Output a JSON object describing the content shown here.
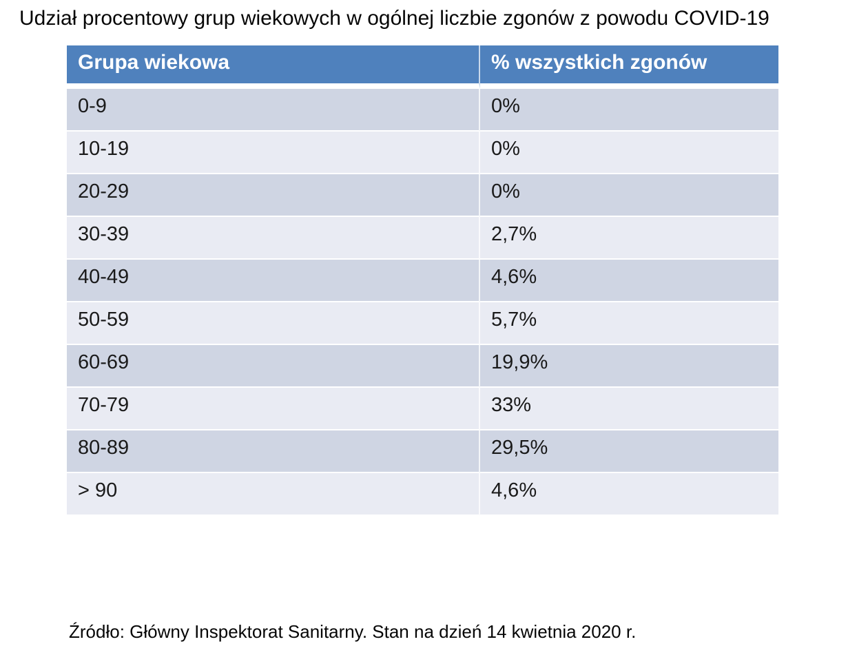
{
  "title": "Udział procentowy grup wiekowych w ogólnej liczbie zgonów z powodu COVID-19",
  "source_note": "Źródło: Główny Inspektorat Sanitarny. Stan na dzień 14 kwietnia 2020 r.",
  "table": {
    "headers": {
      "group": "Grupa wiekowa",
      "pct": "% wszystkich zgonów"
    },
    "rows": [
      {
        "group": "0-9",
        "pct": "0%"
      },
      {
        "group": "10-19",
        "pct": "0%"
      },
      {
        "group": "20-29",
        "pct": "0%"
      },
      {
        "group": "30-39",
        "pct": "2,7%"
      },
      {
        "group": "40-49",
        "pct": "4,6%"
      },
      {
        "group": "50-59",
        "pct": "5,7%"
      },
      {
        "group": "60-69",
        "pct": "19,9%"
      },
      {
        "group": "70-79",
        "pct": "33%"
      },
      {
        "group": "80-89",
        "pct": "29,5%"
      },
      {
        "group": "> 90",
        "pct": "4,6%"
      }
    ]
  },
  "colors": {
    "header_bg": "#4F81BD",
    "header_text": "#FFFFFF",
    "row_dark_bg": "#CFD5E3",
    "row_light_bg": "#E9EBF3",
    "body_text": "#1A1A1A"
  },
  "chart_data": {
    "type": "table",
    "title": "Udział procentowy grup wiekowych w ogólnej liczbie zgonów z powodu COVID-19",
    "columns": [
      "Grupa wiekowa",
      "% wszystkich zgonów"
    ],
    "categories": [
      "0-9",
      "10-19",
      "20-29",
      "30-39",
      "40-49",
      "50-59",
      "60-69",
      "70-79",
      "80-89",
      "> 90"
    ],
    "values": [
      0,
      0,
      0,
      2.7,
      4.6,
      5.7,
      19.9,
      33,
      29.5,
      4.6
    ],
    "value_labels": [
      "0%",
      "0%",
      "0%",
      "2,7%",
      "4,6%",
      "5,7%",
      "19,9%",
      "33%",
      "29,5%",
      "4,6%"
    ],
    "source": "Źródło: Główny Inspektorat Sanitarny. Stan na dzień 14 kwietnia 2020 r.",
    "legend": false,
    "grid": false
  }
}
